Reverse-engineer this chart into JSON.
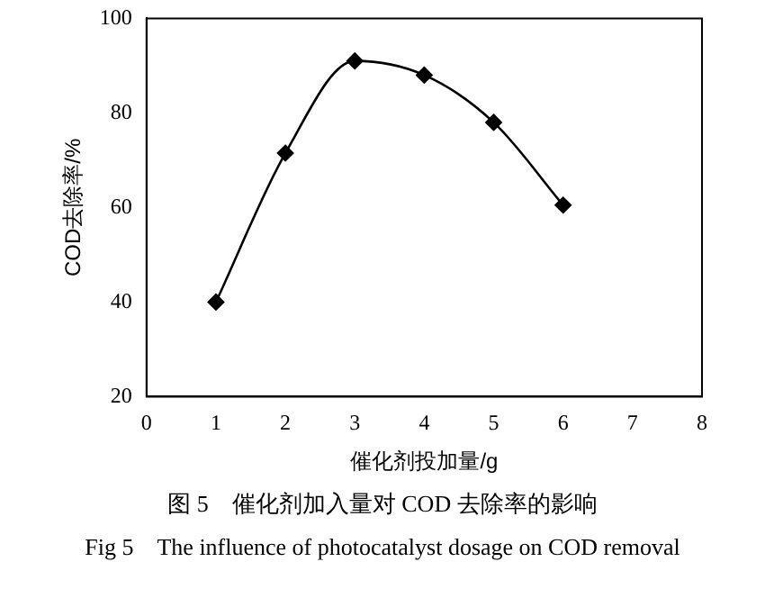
{
  "chart_data": {
    "type": "line",
    "xlabel": "催化剂投加量/g",
    "ylabel": "COD去除率/%",
    "x": [
      1,
      2,
      3,
      4,
      5,
      6
    ],
    "series": [
      {
        "color": "#000000",
        "values": [
          40,
          71.5,
          91,
          88,
          78,
          60.5
        ]
      }
    ],
    "xlim": [
      0,
      8
    ],
    "xticks": [
      0,
      1,
      2,
      3,
      4,
      5,
      6,
      7,
      8
    ],
    "ylim": [
      20,
      100
    ],
    "yticks": [
      20,
      40,
      60,
      80,
      100
    ],
    "grid": false,
    "legend": false,
    "marker": "diamond",
    "line_style": "solid",
    "annotations": [
      "图 5　催化剂加入量对 COD 去除率的影响",
      "Fig 5　The influence of photocatalyst dosage on COD removal"
    ]
  }
}
